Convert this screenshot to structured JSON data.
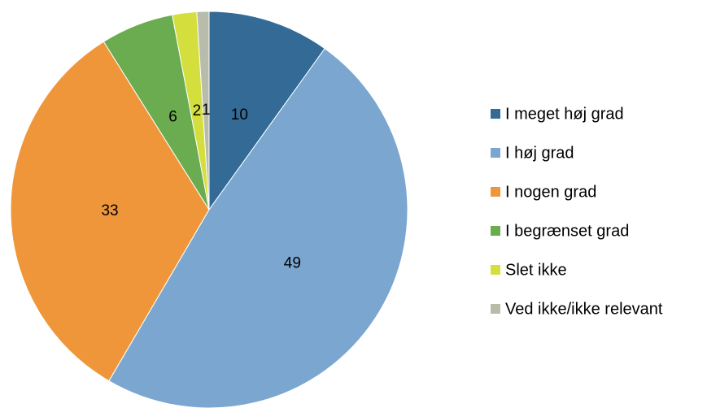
{
  "chart_data": {
    "type": "pie",
    "categories": [
      "I meget høj grad",
      "I høj grad",
      "I nogen grad",
      "I begrænset grad",
      "Slet ikke",
      "Ved ikke/ikke relevant"
    ],
    "values": [
      10,
      49,
      33,
      6,
      2,
      1
    ],
    "colors": [
      "#336b96",
      "#7aa6d0",
      "#f0963a",
      "#6aac4f",
      "#d4de3c",
      "#b8bcaa"
    ],
    "legend": "right"
  }
}
